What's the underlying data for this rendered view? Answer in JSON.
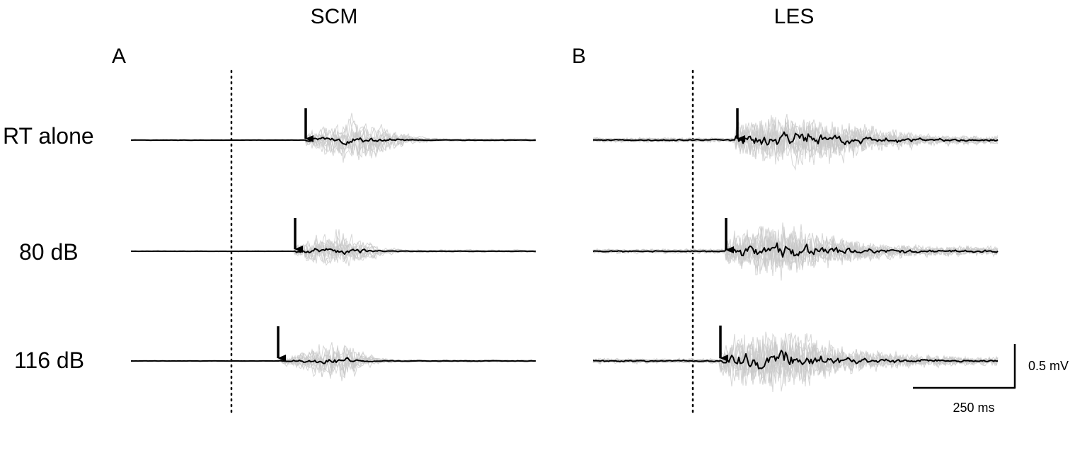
{
  "figure": {
    "columns": [
      {
        "title": "SCM",
        "panel": "A"
      },
      {
        "title": "LES",
        "panel": "B"
      }
    ],
    "rows": [
      {
        "label": "RT alone"
      },
      {
        "label": "80 dB"
      },
      {
        "label": "116 dB"
      }
    ],
    "scale_bar": {
      "amplitude_label": "0.5 mV",
      "time_label": "250 ms"
    },
    "colors": {
      "mean_trace": "#000000",
      "individual_traces": "#c8c8c8",
      "stimulus_marker": "#000000",
      "onset_arrow": "#000000",
      "background": "#ffffff"
    }
  }
}
